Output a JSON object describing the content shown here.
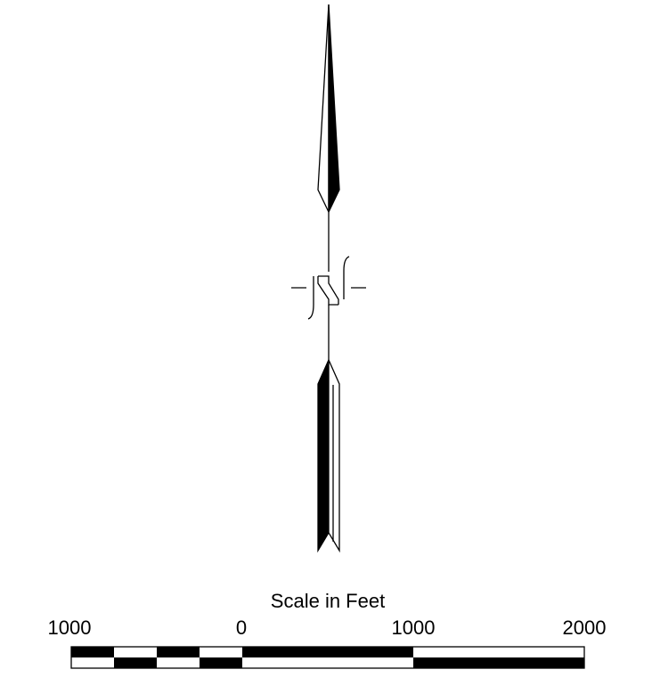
{
  "north_arrow": {
    "icon": "north-arrow-icon",
    "color": "#000000"
  },
  "scale_bar": {
    "title": "Scale in Feet",
    "unit": "feet",
    "tick_labels": [
      "1000",
      "0",
      "1000",
      "2000"
    ],
    "tick_values": [
      -1000,
      0,
      1000,
      2000
    ],
    "left_subdivisions": 4,
    "colors": {
      "fill": "#000000",
      "background": "#ffffff"
    }
  }
}
